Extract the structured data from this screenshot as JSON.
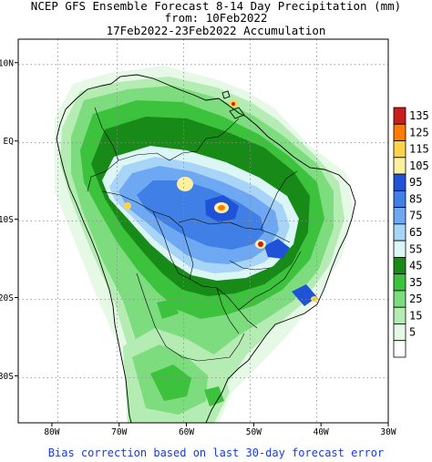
{
  "header": {
    "line1": "NCEP GFS Ensemble Forecast 8-14 Day Precipitation (mm)",
    "line2": "from: 10Feb2022",
    "line3": "17Feb2022-23Feb2022 Accumulation"
  },
  "footer": "Bias correction based on last 30-day forecast error",
  "map": {
    "lon_range": [
      -85,
      -30
    ],
    "lat_range": [
      -36,
      13
    ],
    "x_ticks": [
      {
        "lon": -80,
        "label": "80W"
      },
      {
        "lon": -70,
        "label": "70W"
      },
      {
        "lon": -60,
        "label": "60W"
      },
      {
        "lon": -50,
        "label": "50W"
      },
      {
        "lon": -40,
        "label": "40W"
      },
      {
        "lon": -30,
        "label": "30W"
      }
    ],
    "y_ticks": [
      {
        "lat": 10,
        "label": "10N"
      },
      {
        "lat": 0,
        "label": "EQ"
      },
      {
        "lat": -10,
        "label": "10S"
      },
      {
        "lat": -20,
        "label": "20S"
      },
      {
        "lat": -30,
        "label": "30S"
      }
    ],
    "grid": true
  },
  "colorbar": {
    "levels": [
      {
        "label": "135",
        "color": "#c81e1e"
      },
      {
        "label": "125",
        "color": "#ff7b00"
      },
      {
        "label": "115",
        "color": "#ffd24a"
      },
      {
        "label": "105",
        "color": "#fff0a0"
      },
      {
        "label": "95",
        "color": "#1f52d6"
      },
      {
        "label": "85",
        "color": "#3f7fe6"
      },
      {
        "label": "75",
        "color": "#6fa8f2"
      },
      {
        "label": "65",
        "color": "#a8d4f8"
      },
      {
        "label": "55",
        "color": "#dcf5f5"
      },
      {
        "label": "45",
        "color": "#178a17"
      },
      {
        "label": "35",
        "color": "#3cc23c"
      },
      {
        "label": "25",
        "color": "#7ddc7d"
      },
      {
        "label": "15",
        "color": "#b4ecb4"
      },
      {
        "label": "5",
        "color": "#e6f8e6"
      },
      {
        "label": "",
        "color": "#ffffff"
      }
    ]
  }
}
